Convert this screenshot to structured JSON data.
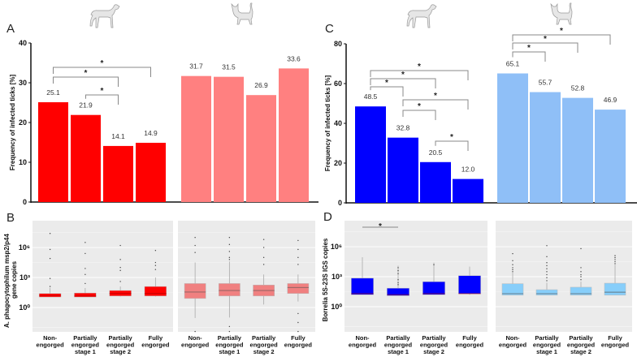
{
  "colors": {
    "dog_a": "#ff0000",
    "cat_a": "#ff8080",
    "dog_c": "#0000ff",
    "cat_c": "#8fbff7",
    "box_dog_b": "#ff0000",
    "box_cat_b": "#f08080",
    "box_dog_d": "#0000ff",
    "box_cat_d": "#87cefa",
    "panel_bg": "#ebebeb"
  },
  "icons": [
    "dog-icon",
    "cat-icon"
  ],
  "categories": [
    "Non-\nengorged",
    "Partially\nengorged\nstage 1",
    "Partially\nengorged\nstage 2",
    "Fully\nengorged"
  ],
  "chart_data": [
    {
      "panel": "A",
      "type": "bar",
      "ylabel": "Frequency of infected ticks [%]",
      "ylim": [
        0,
        40
      ],
      "yticks": [
        0,
        10,
        20,
        30,
        40
      ],
      "series": [
        {
          "name": "dog",
          "values": [
            25.1,
            21.9,
            14.1,
            14.9
          ],
          "labels": [
            "25.1",
            "21.9",
            "14.1",
            "14.9"
          ]
        },
        {
          "name": "cat",
          "values": [
            31.7,
            31.5,
            26.9,
            33.6
          ],
          "labels": [
            "31.7",
            "31.5",
            "26.9",
            "33.6"
          ]
        }
      ],
      "significance": {
        "dog": [
          [
            0,
            3,
            "*"
          ],
          [
            0,
            2,
            "*"
          ],
          [
            1,
            2,
            "*"
          ]
        ],
        "cat": []
      }
    },
    {
      "panel": "C",
      "type": "bar",
      "ylabel": "Frequency of infected ticks [%]",
      "ylim": [
        0,
        80
      ],
      "yticks": [
        0,
        20,
        40,
        60,
        80
      ],
      "series": [
        {
          "name": "dog",
          "values": [
            48.5,
            32.8,
            20.5,
            12.0
          ],
          "labels": [
            "48.5",
            "32.8",
            "20.5",
            "12.0"
          ]
        },
        {
          "name": "cat",
          "values": [
            65.1,
            55.7,
            52.8,
            46.9
          ],
          "labels": [
            "65.1",
            "55.7",
            "52.8",
            "46.9"
          ]
        }
      ],
      "significance": {
        "dog": [
          [
            0,
            3,
            "*"
          ],
          [
            0,
            2,
            "*"
          ],
          [
            0,
            1,
            "*"
          ],
          [
            1,
            3,
            "*"
          ],
          [
            1,
            2,
            "*"
          ],
          [
            2,
            3,
            "*"
          ]
        ],
        "cat": [
          [
            0,
            3,
            "*"
          ],
          [
            0,
            2,
            "*"
          ],
          [
            0,
            1,
            "*"
          ]
        ]
      }
    },
    {
      "panel": "B",
      "type": "box",
      "ylabel": "A. phagocytophilum msp2/p44 gene copies",
      "yscale": "log10",
      "yticks": [
        "10⁰",
        "10³",
        "10⁶"
      ],
      "series": [
        {
          "name": "dog",
          "boxes": [
            {
              "low": 1.05,
              "q1": 1.05,
              "median": 1.2,
              "q3": 1.4,
              "high": 1.95,
              "outliers": [
                7.4,
                5.8,
                4.9,
                2.9,
                2.1
              ]
            },
            {
              "low": 1.05,
              "q1": 1.05,
              "median": 1.15,
              "q3": 1.45,
              "high": 1.95,
              "outliers": [
                6.5,
                5.4,
                3.9,
                3.3,
                2.4
              ]
            },
            {
              "low": 1.1,
              "q1": 1.15,
              "median": 1.4,
              "q3": 1.7,
              "high": 2.1,
              "outliers": [
                6.2,
                4.8,
                4.0,
                3.7,
                2.6
              ]
            },
            {
              "low": 1.1,
              "q1": 1.15,
              "median": 1.4,
              "q3": 2.1,
              "high": 3.0,
              "outliers": [
                5.7,
                4.5,
                4.2,
                3.8
              ]
            }
          ]
        },
        {
          "name": "cat",
          "boxes": [
            {
              "low": -1.05,
              "q1": 0.9,
              "median": 1.55,
              "q3": 2.4,
              "high": 4.5,
              "outliers": [
                7.0,
                6.2,
                5.5,
                -2.4
              ]
            },
            {
              "low": -1.0,
              "q1": 1.15,
              "median": 1.7,
              "q3": 2.4,
              "high": 4.6,
              "outliers": [
                7.0,
                6.3,
                5.6,
                5.0,
                4.8,
                -1.9,
                -2.4
              ]
            },
            {
              "low": 0.3,
              "q1": 1.15,
              "median": 1.7,
              "q3": 2.25,
              "high": 3.3,
              "outliers": [
                6.8,
                6.0,
                5.0,
                4.3
              ]
            },
            {
              "low": 0.6,
              "q1": 1.4,
              "median": 2.0,
              "q3": 2.4,
              "high": 3.3,
              "outliers": [
                6.7,
                5.8,
                5.0,
                4.3,
                -0.6,
                -1.5,
                -2.4
              ]
            }
          ]
        }
      ],
      "significance": {
        "dog": [],
        "cat": []
      }
    },
    {
      "panel": "D",
      "type": "box",
      "ylabel": "Borrelia 5S-23S IGS copies",
      "yscale": "log10",
      "yticks": [
        "10⁰",
        "10³",
        "10⁶"
      ],
      "series": [
        {
          "name": "dog",
          "boxes": [
            {
              "low": 1.2,
              "q1": 1.2,
              "median": 1.3,
              "q3": 2.85,
              "high": 4.95,
              "outliers": []
            },
            {
              "low": 1.1,
              "q1": 1.1,
              "median": 1.2,
              "q3": 1.85,
              "high": 4.1,
              "outliers": [
                3.9,
                3.6,
                3.3,
                2.7,
                2.4,
                2.2
              ]
            },
            {
              "low": 1.2,
              "q1": 1.2,
              "median": 1.3,
              "q3": 2.5,
              "high": 4.4,
              "outliers": [
                4.2
              ]
            },
            {
              "low": 1.2,
              "q1": 1.3,
              "median": 1.3,
              "q3": 3.1,
              "high": 4.0,
              "outliers": []
            }
          ]
        },
        {
          "name": "cat",
          "boxes": [
            {
              "low": 1.15,
              "q1": 1.15,
              "median": 1.3,
              "q3": 2.3,
              "high": 3.4,
              "outliers": [
                5.3,
                4.6,
                4.2,
                3.9,
                3.7,
                3.5
              ]
            },
            {
              "low": 1.15,
              "q1": 1.15,
              "median": 1.3,
              "q3": 1.7,
              "high": 2.4,
              "outliers": [
                6.1,
                5.0,
                4.4,
                4.1,
                3.8,
                3.5,
                3.2,
                2.9,
                2.6
              ]
            },
            {
              "low": 1.15,
              "q1": 1.15,
              "median": 1.3,
              "q3": 1.95,
              "high": 2.5,
              "outliers": [
                5.8,
                3.9,
                3.5,
                3.2,
                3.0,
                2.7
              ]
            },
            {
              "low": 1.15,
              "q1": 1.15,
              "median": 1.45,
              "q3": 2.35,
              "high": 4.2,
              "outliers": [
                5.1,
                4.9,
                4.7,
                4.5,
                4.3
              ]
            }
          ]
        }
      ],
      "significance": {
        "dog": [
          [
            0,
            1,
            "*"
          ]
        ],
        "cat": []
      }
    }
  ]
}
